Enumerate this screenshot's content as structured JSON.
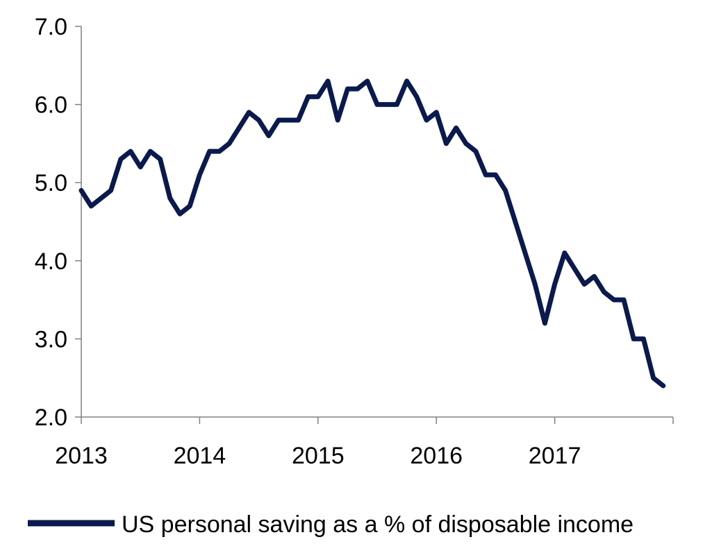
{
  "chart_data": {
    "type": "line",
    "title": "",
    "xlabel": "",
    "ylabel": "",
    "x_tick_labels": [
      "2013",
      "2014",
      "2015",
      "2016",
      "2017"
    ],
    "y_tick_labels": [
      "2.0",
      "3.0",
      "4.0",
      "5.0",
      "6.0",
      "7.0"
    ],
    "ylim": [
      2.0,
      7.0
    ],
    "xlim": [
      "2013-01",
      "2017-12"
    ],
    "grid": false,
    "legend_position": "bottom",
    "x": [
      "2013-01",
      "2013-02",
      "2013-03",
      "2013-04",
      "2013-05",
      "2013-06",
      "2013-07",
      "2013-08",
      "2013-09",
      "2013-10",
      "2013-11",
      "2013-12",
      "2014-01",
      "2014-02",
      "2014-03",
      "2014-04",
      "2014-05",
      "2014-06",
      "2014-07",
      "2014-08",
      "2014-09",
      "2014-10",
      "2014-11",
      "2014-12",
      "2015-01",
      "2015-02",
      "2015-03",
      "2015-04",
      "2015-05",
      "2015-06",
      "2015-07",
      "2015-08",
      "2015-09",
      "2015-10",
      "2015-11",
      "2015-12",
      "2016-01",
      "2016-02",
      "2016-03",
      "2016-04",
      "2016-05",
      "2016-06",
      "2016-07",
      "2016-08",
      "2016-09",
      "2016-10",
      "2016-11",
      "2016-12",
      "2017-01",
      "2017-02",
      "2017-03",
      "2017-04",
      "2017-05",
      "2017-06",
      "2017-07",
      "2017-08",
      "2017-09",
      "2017-10",
      "2017-11",
      "2017-12"
    ],
    "series": [
      {
        "name": "US personal saving as a % of disposable income",
        "color": "#0a1a4e",
        "values": [
          4.9,
          4.7,
          4.8,
          4.9,
          5.3,
          5.4,
          5.2,
          5.4,
          5.3,
          4.8,
          4.6,
          4.7,
          5.1,
          5.4,
          5.4,
          5.5,
          5.7,
          5.9,
          5.8,
          5.6,
          5.8,
          5.8,
          5.8,
          6.1,
          6.1,
          6.3,
          5.8,
          6.2,
          6.2,
          6.3,
          6.0,
          6.0,
          6.0,
          6.3,
          6.1,
          5.8,
          5.9,
          5.5,
          5.7,
          5.5,
          5.4,
          5.1,
          5.1,
          4.9,
          4.5,
          4.1,
          3.7,
          3.2,
          3.7,
          4.1,
          3.9,
          3.7,
          3.8,
          3.6,
          3.5,
          3.5,
          3.0,
          3.0,
          2.5,
          2.4
        ]
      }
    ]
  }
}
